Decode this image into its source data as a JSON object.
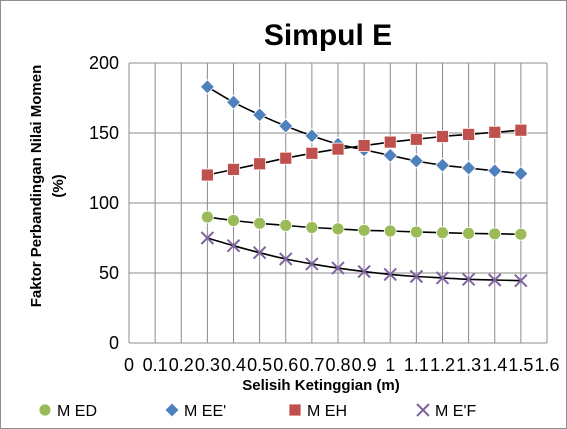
{
  "chart_data": {
    "type": "scatter",
    "title": "Simpul E",
    "xlabel": "Selisih Ketinggian (m)",
    "ylabel_line1": "Faktor Perbandingan Nilai Momen",
    "ylabel_line2": "(%)",
    "xlim": [
      0,
      1.6
    ],
    "ylim": [
      0,
      200
    ],
    "x_ticks": [
      0,
      0.1,
      0.2,
      0.3,
      0.4,
      0.5,
      0.6,
      0.7,
      0.8,
      0.9,
      1,
      1.1,
      1.2,
      1.3,
      1.4,
      1.5,
      1.6
    ],
    "x_tick_labels": [
      "0",
      "0.1",
      "0.2",
      "0.3",
      "0.4",
      "0.5",
      "0.6",
      "0.7",
      "0.8",
      "0.9",
      "1",
      "1.1",
      "1.2",
      "1.3",
      "1.4",
      "1.5",
      "1.6"
    ],
    "y_ticks": [
      0,
      50,
      100,
      150,
      200
    ],
    "y_tick_labels": [
      "0",
      "50",
      "100",
      "150",
      "200"
    ],
    "grid": "vertical and horizontal",
    "legend_position": "bottom",
    "trendlines": true,
    "x": [
      0.3,
      0.4,
      0.5,
      0.6,
      0.7,
      0.8,
      0.9,
      1.0,
      1.1,
      1.2,
      1.3,
      1.4,
      1.5
    ],
    "series": [
      {
        "name": "M ED",
        "marker": "circle",
        "color": "#9bbb59",
        "values": [
          90,
          87.5,
          85.5,
          84,
          82.5,
          81.5,
          80.5,
          80,
          79.3,
          78.8,
          78.3,
          78,
          77.7
        ]
      },
      {
        "name": "M EE'",
        "marker": "diamond",
        "color": "#4f81bd",
        "values": [
          183,
          172,
          163,
          155,
          148,
          142,
          138,
          134,
          130,
          127,
          125,
          123,
          121
        ]
      },
      {
        "name": "M EH",
        "marker": "square",
        "color": "#c0504d",
        "values": [
          120,
          124,
          128,
          132,
          135.5,
          138.5,
          141,
          143.5,
          145.5,
          147.5,
          149,
          150.5,
          152
        ]
      },
      {
        "name": "M E'F",
        "marker": "x",
        "color": "#8064a2",
        "values": [
          75,
          69.5,
          64.5,
          60,
          56.5,
          53.5,
          51,
          49,
          47.5,
          46.5,
          45.5,
          45,
          44.5
        ]
      }
    ]
  }
}
